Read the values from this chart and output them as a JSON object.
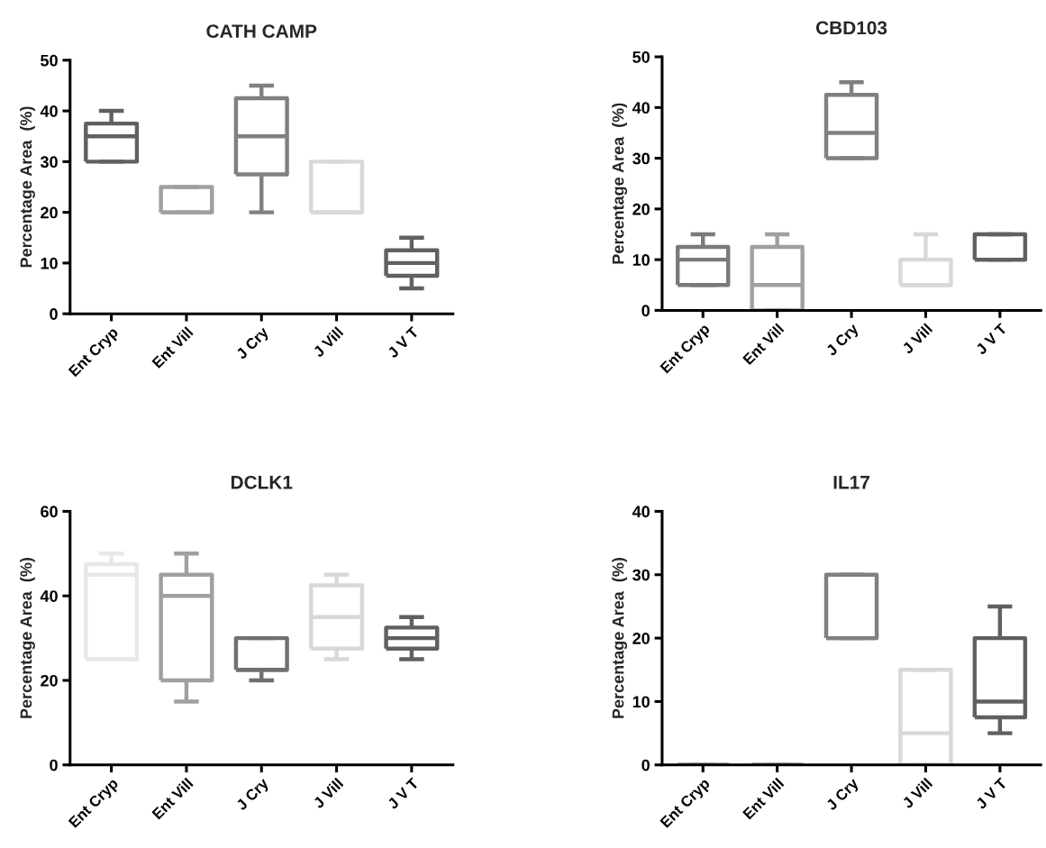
{
  "chart_data": [
    {
      "type": "box",
      "title": "CATH CAMP",
      "ylabel": "Percentage Area  (%)",
      "categories": [
        "Ent Cryp",
        "Ent Vill",
        "J Cry",
        "J Vill",
        "J V T"
      ],
      "ylim": [
        0,
        50
      ],
      "yticks": [
        0,
        10,
        20,
        30,
        40,
        50
      ],
      "legend": false,
      "colors": [
        "#606060",
        "#a0a0a4",
        "#808080",
        "#d8d8d8",
        "#606060"
      ],
      "boxes": [
        {
          "low": 30,
          "q1": 30,
          "median": 35,
          "q3": 37.5,
          "high": 40
        },
        {
          "low": 20,
          "q1": 20,
          "median": 20,
          "q3": 25,
          "high": 25
        },
        {
          "low": 20,
          "q1": 27.5,
          "median": 35,
          "q3": 42.5,
          "high": 45
        },
        {
          "low": 20,
          "q1": 20,
          "median": 20,
          "q3": 30,
          "high": 30
        },
        {
          "low": 5,
          "q1": 7.5,
          "median": 10,
          "q3": 12.5,
          "high": 15
        }
      ]
    },
    {
      "type": "box",
      "title": "CBD103",
      "ylabel": "Percentage Area  (%)",
      "categories": [
        "Ent Cryp",
        "Ent Vill",
        "J Cry",
        "J Vill",
        "J V T"
      ],
      "ylim": [
        0,
        50
      ],
      "yticks": [
        0,
        10,
        20,
        30,
        40,
        50
      ],
      "legend": false,
      "colors": [
        "#7a7a7a",
        "#a0a0a4",
        "#808080",
        "#d8d8d8",
        "#606060"
      ],
      "boxes": [
        {
          "low": 5,
          "q1": 5,
          "median": 10,
          "q3": 12.5,
          "high": 15
        },
        {
          "low": 0,
          "q1": 0,
          "median": 5,
          "q3": 12.5,
          "high": 15
        },
        {
          "low": 30,
          "q1": 30,
          "median": 35,
          "q3": 42.5,
          "high": 45
        },
        {
          "low": 5,
          "q1": 5,
          "median": 5,
          "q3": 10,
          "high": 15
        },
        {
          "low": 10,
          "q1": 10,
          "median": 10,
          "q3": 15,
          "high": 15
        }
      ]
    },
    {
      "type": "box",
      "title": "DCLK1",
      "ylabel": "Percentage Area  (%)",
      "categories": [
        "Ent Cryp",
        "Ent Vill",
        "J Cry",
        "J Vill",
        "J V T"
      ],
      "ylim": [
        0,
        60
      ],
      "yticks": [
        0,
        20,
        40,
        60
      ],
      "legend": false,
      "colors": [
        "#e8e8e8",
        "#a0a0a4",
        "#707070",
        "#d8d8d8",
        "#606060"
      ],
      "boxes": [
        {
          "low": 25,
          "q1": 25,
          "median": 45,
          "q3": 47.5,
          "high": 50
        },
        {
          "low": 15,
          "q1": 20,
          "median": 40,
          "q3": 45,
          "high": 50
        },
        {
          "low": 20,
          "q1": 22.5,
          "median": 22.5,
          "q3": 30,
          "high": 30
        },
        {
          "low": 25,
          "q1": 27.5,
          "median": 35,
          "q3": 42.5,
          "high": 45
        },
        {
          "low": 25,
          "q1": 27.5,
          "median": 30,
          "q3": 32.5,
          "high": 35
        }
      ]
    },
    {
      "type": "box",
      "title": "IL17",
      "ylabel": "Percentage Area  (%)",
      "categories": [
        "Ent Cryp",
        "Ent Vill",
        "J Cry",
        "J Vill",
        "J V T"
      ],
      "ylim": [
        0,
        40
      ],
      "yticks": [
        0,
        10,
        20,
        30,
        40
      ],
      "legend": false,
      "colors": [
        "#a0a0a4",
        "#a0a0a4",
        "#808080",
        "#d8d8d8",
        "#606060"
      ],
      "boxes": [
        {
          "low": 0,
          "q1": 0,
          "median": 0,
          "q3": 0,
          "high": 0
        },
        {
          "low": 0,
          "q1": 0,
          "median": 0,
          "q3": 0,
          "high": 0
        },
        {
          "low": 20,
          "q1": 20,
          "median": 20,
          "q3": 30,
          "high": 30
        },
        {
          "low": 0,
          "q1": 0,
          "median": 5,
          "q3": 15,
          "high": 15
        },
        {
          "low": 5,
          "q1": 7.5,
          "median": 10,
          "q3": 20,
          "high": 25
        }
      ]
    }
  ]
}
